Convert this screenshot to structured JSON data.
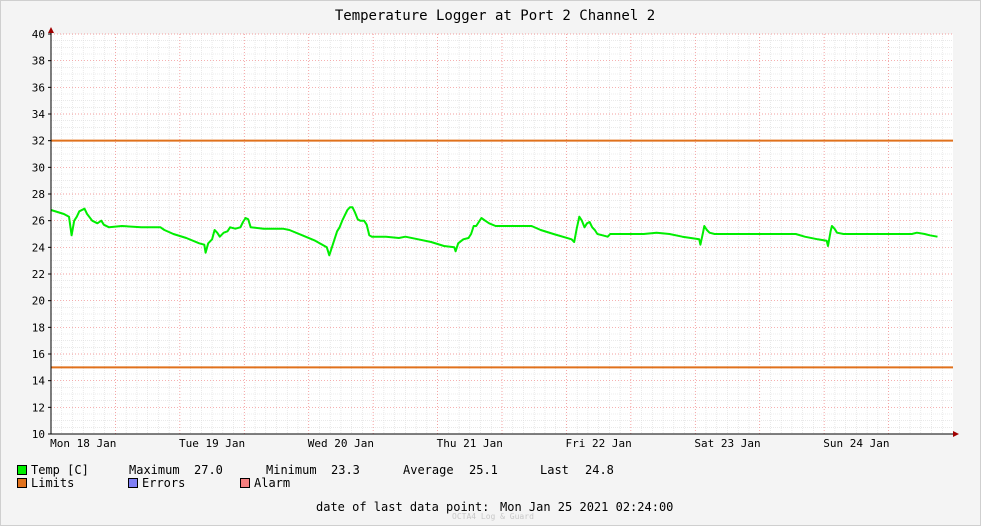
{
  "chart_data": {
    "type": "line",
    "title": "Temperature Logger at Port 2 Channel 2",
    "ylim": [
      10,
      40
    ],
    "yticks": [
      10,
      12,
      14,
      16,
      18,
      20,
      22,
      24,
      26,
      28,
      30,
      32,
      34,
      36,
      38,
      40
    ],
    "x_ticks": [
      "Mon 18 Jan",
      "Tue 19 Jan",
      "Wed 20 Jan",
      "Thu 21 Jan",
      "Fri 22 Jan",
      "Sat 23 Jan",
      "Sun 24 Jan"
    ],
    "grid": true,
    "x_unit": "days since Sun 17 Jan 2021 18:00",
    "limits": [
      {
        "name": "Limits",
        "value": 32.0,
        "color": "#e0711c"
      },
      {
        "name": "Limits",
        "value": 15.0,
        "color": "#e0711c"
      }
    ],
    "series": [
      {
        "name": "Temp [C]",
        "color": "#00ee00",
        "points": [
          [
            0.0,
            26.8
          ],
          [
            0.1,
            26.5
          ],
          [
            0.14,
            26.3
          ],
          [
            0.16,
            24.9
          ],
          [
            0.18,
            26.0
          ],
          [
            0.2,
            26.3
          ],
          [
            0.22,
            26.7
          ],
          [
            0.26,
            26.9
          ],
          [
            0.28,
            26.5
          ],
          [
            0.32,
            26.0
          ],
          [
            0.36,
            25.8
          ],
          [
            0.39,
            26.0
          ],
          [
            0.41,
            25.7
          ],
          [
            0.45,
            25.5
          ],
          [
            0.55,
            25.6
          ],
          [
            0.7,
            25.5
          ],
          [
            0.85,
            25.5
          ],
          [
            0.88,
            25.3
          ],
          [
            0.95,
            25.0
          ],
          [
            1.05,
            24.7
          ],
          [
            1.15,
            24.3
          ],
          [
            1.19,
            24.2
          ],
          [
            1.2,
            23.6
          ],
          [
            1.22,
            24.3
          ],
          [
            1.25,
            24.6
          ],
          [
            1.27,
            25.3
          ],
          [
            1.29,
            25.1
          ],
          [
            1.31,
            24.8
          ],
          [
            1.34,
            25.1
          ],
          [
            1.37,
            25.2
          ],
          [
            1.39,
            25.5
          ],
          [
            1.43,
            25.4
          ],
          [
            1.47,
            25.5
          ],
          [
            1.49,
            25.9
          ],
          [
            1.51,
            26.2
          ],
          [
            1.53,
            26.1
          ],
          [
            1.55,
            25.5
          ],
          [
            1.65,
            25.4
          ],
          [
            1.8,
            25.4
          ],
          [
            1.85,
            25.3
          ],
          [
            1.95,
            24.9
          ],
          [
            2.05,
            24.5
          ],
          [
            2.14,
            24.0
          ],
          [
            2.16,
            23.4
          ],
          [
            2.18,
            24.0
          ],
          [
            2.2,
            24.6
          ],
          [
            2.22,
            25.2
          ],
          [
            2.24,
            25.5
          ],
          [
            2.26,
            26.0
          ],
          [
            2.28,
            26.4
          ],
          [
            2.3,
            26.8
          ],
          [
            2.32,
            27.0
          ],
          [
            2.34,
            27.0
          ],
          [
            2.36,
            26.6
          ],
          [
            2.38,
            26.1
          ],
          [
            2.4,
            26.0
          ],
          [
            2.43,
            26.0
          ],
          [
            2.45,
            25.7
          ],
          [
            2.47,
            24.9
          ],
          [
            2.49,
            24.8
          ],
          [
            2.6,
            24.8
          ],
          [
            2.7,
            24.7
          ],
          [
            2.75,
            24.8
          ],
          [
            2.85,
            24.6
          ],
          [
            2.95,
            24.4
          ],
          [
            3.05,
            24.1
          ],
          [
            3.13,
            24.0
          ],
          [
            3.14,
            23.7
          ],
          [
            3.16,
            24.3
          ],
          [
            3.2,
            24.6
          ],
          [
            3.24,
            24.7
          ],
          [
            3.26,
            25.0
          ],
          [
            3.28,
            25.6
          ],
          [
            3.3,
            25.6
          ],
          [
            3.32,
            25.9
          ],
          [
            3.34,
            26.2
          ],
          [
            3.37,
            26.0
          ],
          [
            3.4,
            25.8
          ],
          [
            3.45,
            25.6
          ],
          [
            3.55,
            25.6
          ],
          [
            3.73,
            25.6
          ],
          [
            3.8,
            25.3
          ],
          [
            3.9,
            25.0
          ],
          [
            4.04,
            24.6
          ],
          [
            4.06,
            24.4
          ],
          [
            4.08,
            25.4
          ],
          [
            4.1,
            26.3
          ],
          [
            4.12,
            26.0
          ],
          [
            4.14,
            25.5
          ],
          [
            4.16,
            25.8
          ],
          [
            4.18,
            25.9
          ],
          [
            4.2,
            25.5
          ],
          [
            4.22,
            25.3
          ],
          [
            4.24,
            25.0
          ],
          [
            4.28,
            24.9
          ],
          [
            4.32,
            24.8
          ],
          [
            4.34,
            25.0
          ],
          [
            4.45,
            25.0
          ],
          [
            4.6,
            25.0
          ],
          [
            4.7,
            25.1
          ],
          [
            4.8,
            25.0
          ],
          [
            4.9,
            24.8
          ],
          [
            5.03,
            24.6
          ],
          [
            5.04,
            24.2
          ],
          [
            5.06,
            25.1
          ],
          [
            5.07,
            25.6
          ],
          [
            5.09,
            25.3
          ],
          [
            5.11,
            25.1
          ],
          [
            5.15,
            25.0
          ],
          [
            5.3,
            25.0
          ],
          [
            5.5,
            25.0
          ],
          [
            5.78,
            25.0
          ],
          [
            5.85,
            24.8
          ],
          [
            5.95,
            24.6
          ],
          [
            6.02,
            24.5
          ],
          [
            6.03,
            24.1
          ],
          [
            6.05,
            25.2
          ],
          [
            6.06,
            25.6
          ],
          [
            6.08,
            25.4
          ],
          [
            6.1,
            25.1
          ],
          [
            6.15,
            25.0
          ],
          [
            6.4,
            25.0
          ],
          [
            6.68,
            25.0
          ],
          [
            6.72,
            25.1
          ],
          [
            6.78,
            25.0
          ],
          [
            6.82,
            24.9
          ],
          [
            6.88,
            24.8
          ]
        ]
      }
    ]
  },
  "legend": {
    "temp_label": "Temp [C]",
    "maximum_label": "Maximum",
    "maximum_value": "27.0",
    "minimum_label": "Minimum",
    "minimum_value": "23.3",
    "average_label": "Average",
    "average_value": "25.1",
    "last_label": "Last",
    "last_value": "24.8",
    "limits_label": "Limits",
    "errors_label": "Errors",
    "alarm_label": "Alarm",
    "colors": {
      "temp": "#00ee00",
      "limits": "#e0711c",
      "errors": "#7f7ff5",
      "alarm": "#f57f7f"
    }
  },
  "footer": {
    "last_point_label": "date of last data point:",
    "last_point_value": "Mon Jan 25 2021 02:24:00",
    "brand": "OCTA4 Log & Guard"
  }
}
